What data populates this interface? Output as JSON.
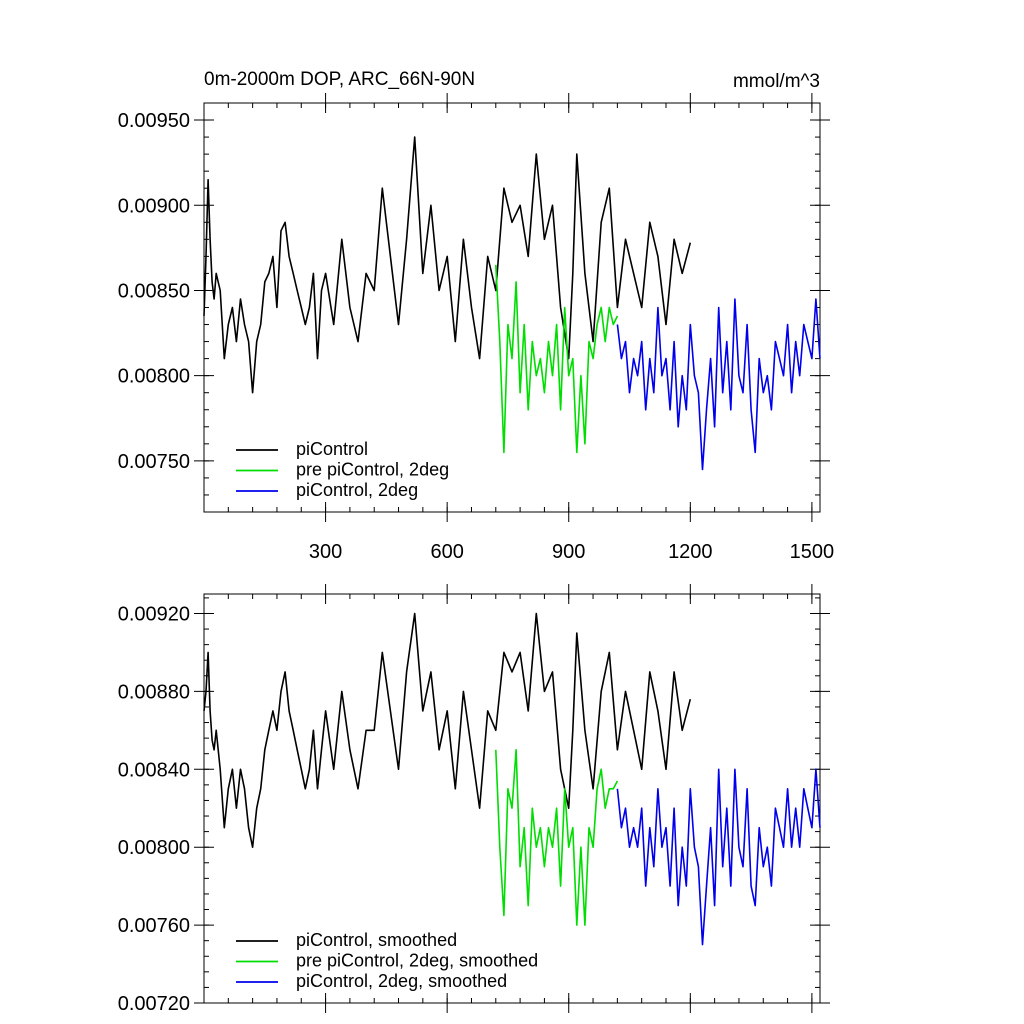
{
  "chart_data": [
    {
      "type": "line",
      "title": "0m-2000m DOP, ARC_66N-90N",
      "units": "mmol/m^3",
      "xlabel": "",
      "ylabel": "",
      "xlim": [
        0,
        1520
      ],
      "ylim": [
        0.0072,
        0.0096
      ],
      "x_ticks": [
        300,
        600,
        900,
        1200,
        1500
      ],
      "y_ticks": [
        0.0075,
        0.008,
        0.0085,
        0.009,
        0.0095
      ],
      "y_tick_labels": [
        "0.00750",
        "0.00800",
        "0.00850",
        "0.00900",
        "0.00950"
      ],
      "legend_position": "bottom-left",
      "series": [
        {
          "name": "piControl",
          "color": "#000000",
          "x": [
            0,
            5,
            10,
            15,
            20,
            25,
            30,
            40,
            50,
            60,
            70,
            80,
            90,
            100,
            110,
            120,
            130,
            140,
            150,
            160,
            170,
            180,
            190,
            200,
            210,
            220,
            230,
            240,
            250,
            260,
            270,
            280,
            290,
            300,
            320,
            340,
            360,
            380,
            400,
            420,
            440,
            460,
            480,
            500,
            520,
            540,
            560,
            580,
            600,
            620,
            640,
            660,
            680,
            700,
            720,
            740,
            760,
            780,
            800,
            820,
            840,
            860,
            880,
            900,
            910,
            920,
            940,
            960,
            980,
            1000,
            1020,
            1040,
            1060,
            1080,
            1100,
            1120,
            1140,
            1160,
            1180,
            1200
          ],
          "values": [
            0.00835,
            0.0087,
            0.00915,
            0.0088,
            0.00855,
            0.00845,
            0.0086,
            0.0085,
            0.0081,
            0.0083,
            0.0084,
            0.0082,
            0.00845,
            0.0083,
            0.0082,
            0.0079,
            0.0082,
            0.0083,
            0.00855,
            0.0086,
            0.0087,
            0.0084,
            0.00885,
            0.0089,
            0.0087,
            0.0086,
            0.0085,
            0.0084,
            0.0083,
            0.0084,
            0.0086,
            0.0081,
            0.0085,
            0.0086,
            0.0083,
            0.0088,
            0.0084,
            0.0082,
            0.0086,
            0.0085,
            0.0091,
            0.0087,
            0.0083,
            0.0088,
            0.0094,
            0.0086,
            0.009,
            0.0085,
            0.0087,
            0.0082,
            0.0088,
            0.0084,
            0.0081,
            0.0087,
            0.0085,
            0.0091,
            0.0089,
            0.009,
            0.0087,
            0.0093,
            0.0088,
            0.009,
            0.0084,
            0.0081,
            0.0086,
            0.0093,
            0.0086,
            0.0082,
            0.0089,
            0.0091,
            0.0084,
            0.0088,
            0.0086,
            0.0084,
            0.0089,
            0.0087,
            0.0083,
            0.0088,
            0.0086,
            0.00878
          ]
        },
        {
          "name": "pre piControl, 2deg",
          "color": "#00dd00",
          "x": [
            720,
            730,
            740,
            750,
            760,
            770,
            780,
            790,
            800,
            810,
            820,
            830,
            840,
            850,
            860,
            870,
            880,
            890,
            900,
            910,
            920,
            930,
            940,
            950,
            960,
            970,
            980,
            990,
            1000,
            1010,
            1020
          ],
          "values": [
            0.00865,
            0.0082,
            0.00755,
            0.0083,
            0.0081,
            0.00855,
            0.0079,
            0.0083,
            0.0078,
            0.0082,
            0.008,
            0.0081,
            0.0079,
            0.0082,
            0.008,
            0.0083,
            0.0078,
            0.0084,
            0.008,
            0.0081,
            0.00755,
            0.008,
            0.0076,
            0.0082,
            0.0081,
            0.0083,
            0.0084,
            0.0082,
            0.0084,
            0.0083,
            0.00835
          ]
        },
        {
          "name": "piControl, 2deg",
          "color": "#0000ee",
          "x": [
            1020,
            1030,
            1040,
            1050,
            1060,
            1070,
            1080,
            1090,
            1100,
            1110,
            1120,
            1130,
            1140,
            1150,
            1160,
            1170,
            1180,
            1190,
            1200,
            1210,
            1220,
            1230,
            1240,
            1250,
            1260,
            1270,
            1280,
            1290,
            1300,
            1310,
            1320,
            1330,
            1340,
            1350,
            1360,
            1370,
            1380,
            1390,
            1400,
            1410,
            1420,
            1430,
            1440,
            1450,
            1460,
            1470,
            1480,
            1490,
            1500,
            1510,
            1520
          ],
          "values": [
            0.0083,
            0.0081,
            0.0082,
            0.0079,
            0.0081,
            0.008,
            0.0082,
            0.0078,
            0.0081,
            0.0079,
            0.0084,
            0.008,
            0.0081,
            0.0078,
            0.0082,
            0.0077,
            0.008,
            0.0078,
            0.0083,
            0.008,
            0.0079,
            0.00745,
            0.0078,
            0.0081,
            0.0077,
            0.0084,
            0.0079,
            0.0082,
            0.0078,
            0.00845,
            0.008,
            0.0079,
            0.0083,
            0.0078,
            0.00755,
            0.0081,
            0.0079,
            0.008,
            0.0078,
            0.0082,
            0.0081,
            0.008,
            0.0083,
            0.0079,
            0.0082,
            0.008,
            0.0083,
            0.0082,
            0.0081,
            0.00845,
            0.0081
          ]
        }
      ]
    },
    {
      "type": "line",
      "title": "",
      "xlabel": "",
      "ylabel": "",
      "xlim": [
        0,
        1520
      ],
      "ylim": [
        0.0072,
        0.0093
      ],
      "x_ticks": [
        300,
        600,
        900,
        1200,
        1500
      ],
      "y_ticks": [
        0.0072,
        0.0076,
        0.008,
        0.0084,
        0.0088,
        0.0092
      ],
      "y_tick_labels": [
        "0.00720",
        "0.00760",
        "0.00800",
        "0.00840",
        "0.00880",
        "0.00920"
      ],
      "legend_position": "bottom-left",
      "series": [
        {
          "name": "piControl, smoothed",
          "color": "#000000",
          "x": [
            0,
            5,
            10,
            15,
            20,
            25,
            30,
            40,
            50,
            60,
            70,
            80,
            90,
            100,
            110,
            120,
            130,
            140,
            150,
            160,
            170,
            180,
            190,
            200,
            210,
            220,
            230,
            240,
            250,
            260,
            270,
            280,
            290,
            300,
            320,
            340,
            360,
            380,
            400,
            420,
            440,
            460,
            480,
            500,
            520,
            540,
            560,
            580,
            600,
            620,
            640,
            660,
            680,
            700,
            720,
            740,
            760,
            780,
            800,
            820,
            840,
            860,
            880,
            900,
            910,
            920,
            940,
            960,
            980,
            1000,
            1020,
            1040,
            1060,
            1080,
            1100,
            1120,
            1140,
            1160,
            1180,
            1200
          ],
          "values": [
            0.0087,
            0.0088,
            0.009,
            0.0087,
            0.00855,
            0.0085,
            0.0086,
            0.0084,
            0.0081,
            0.0083,
            0.0084,
            0.0082,
            0.0084,
            0.0083,
            0.0081,
            0.008,
            0.0082,
            0.0083,
            0.0085,
            0.0086,
            0.0087,
            0.0086,
            0.0088,
            0.0089,
            0.0087,
            0.0086,
            0.0085,
            0.0084,
            0.0083,
            0.0084,
            0.0086,
            0.0083,
            0.0085,
            0.0087,
            0.0084,
            0.0088,
            0.0085,
            0.0083,
            0.0086,
            0.0086,
            0.009,
            0.0087,
            0.0084,
            0.0089,
            0.0092,
            0.0087,
            0.0089,
            0.0085,
            0.0087,
            0.0083,
            0.0088,
            0.0085,
            0.0082,
            0.0087,
            0.0086,
            0.009,
            0.0089,
            0.009,
            0.0087,
            0.0092,
            0.0088,
            0.0089,
            0.0084,
            0.0082,
            0.0086,
            0.0091,
            0.0086,
            0.0083,
            0.0088,
            0.009,
            0.0085,
            0.0088,
            0.0086,
            0.0084,
            0.0089,
            0.0087,
            0.0084,
            0.0089,
            0.0086,
            0.00876
          ]
        },
        {
          "name": "pre piControl, 2deg, smoothed",
          "color": "#00dd00",
          "x": [
            720,
            730,
            740,
            750,
            760,
            770,
            780,
            790,
            800,
            810,
            820,
            830,
            840,
            850,
            860,
            870,
            880,
            890,
            900,
            910,
            920,
            930,
            940,
            950,
            960,
            970,
            980,
            990,
            1000,
            1010,
            1020
          ],
          "values": [
            0.0085,
            0.008,
            0.00765,
            0.0083,
            0.0082,
            0.0085,
            0.0079,
            0.0081,
            0.0077,
            0.0082,
            0.008,
            0.0081,
            0.0079,
            0.0081,
            0.008,
            0.0082,
            0.0078,
            0.0083,
            0.008,
            0.0081,
            0.0076,
            0.008,
            0.0076,
            0.0081,
            0.008,
            0.0083,
            0.0084,
            0.0082,
            0.0083,
            0.0083,
            0.00834
          ]
        },
        {
          "name": "piControl, 2deg, smoothed",
          "color": "#0000ee",
          "x": [
            1020,
            1030,
            1040,
            1050,
            1060,
            1070,
            1080,
            1090,
            1100,
            1110,
            1120,
            1130,
            1140,
            1150,
            1160,
            1170,
            1180,
            1190,
            1200,
            1210,
            1220,
            1230,
            1240,
            1250,
            1260,
            1270,
            1280,
            1290,
            1300,
            1310,
            1320,
            1330,
            1340,
            1350,
            1360,
            1370,
            1380,
            1390,
            1400,
            1410,
            1420,
            1430,
            1440,
            1450,
            1460,
            1470,
            1480,
            1490,
            1500,
            1510,
            1520
          ],
          "values": [
            0.0083,
            0.0081,
            0.0082,
            0.008,
            0.0081,
            0.008,
            0.0082,
            0.0078,
            0.0081,
            0.0079,
            0.0083,
            0.008,
            0.0081,
            0.0078,
            0.0082,
            0.0077,
            0.008,
            0.0078,
            0.0083,
            0.008,
            0.0079,
            0.0075,
            0.0078,
            0.0081,
            0.0077,
            0.0084,
            0.0079,
            0.0082,
            0.0078,
            0.0084,
            0.008,
            0.0079,
            0.0083,
            0.0078,
            0.0077,
            0.0081,
            0.0079,
            0.008,
            0.0078,
            0.0082,
            0.0081,
            0.008,
            0.0083,
            0.008,
            0.0082,
            0.008,
            0.0083,
            0.0082,
            0.0081,
            0.0084,
            0.0081
          ]
        }
      ]
    }
  ]
}
